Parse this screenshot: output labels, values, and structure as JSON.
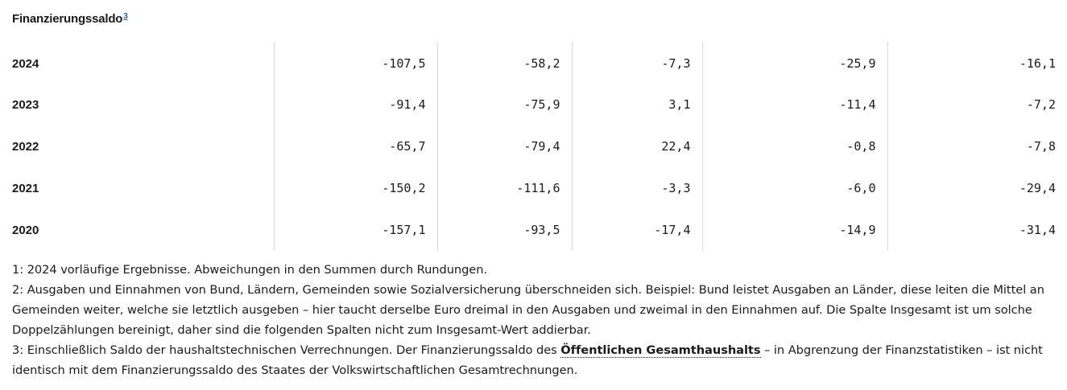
{
  "section": {
    "title": "Finanzierungssaldo",
    "footnote_ref": "3"
  },
  "rows": [
    {
      "year": "2024",
      "values": [
        "-107,5",
        "-58,2",
        "-7,3",
        "-25,9",
        "-16,1"
      ]
    },
    {
      "year": "2023",
      "values": [
        "-91,4",
        "-75,9",
        "3,1",
        "-11,4",
        "-7,2"
      ]
    },
    {
      "year": "2022",
      "values": [
        "-65,7",
        "-79,4",
        "22,4",
        "-0,8",
        "-7,8"
      ]
    },
    {
      "year": "2021",
      "values": [
        "-150,2",
        "-111,6",
        "-3,3",
        "-6,0",
        "-29,4"
      ]
    },
    {
      "year": "2020",
      "values": [
        "-157,1",
        "-93,5",
        "-17,4",
        "-14,9",
        "-31,4"
      ]
    }
  ],
  "footnotes": {
    "note1": "1: 2024 vorläufige Ergebnisse. Abweichungen in den Summen durch Rundungen.",
    "note2": "2: Ausgaben und Einnahmen von Bund, Ländern, Gemeinden sowie Sozialversicherung überschneiden sich. Beispiel: Bund leistet Ausgaben an Länder, diese leiten die Mittel an Gemeinden weiter, welche sie letztlich ausgeben – hier taucht derselbe Euro dreimal in den Ausgaben und zweimal in den Einnahmen auf. Die Spalte Insgesamt ist um solche Doppelzählungen bereinigt, daher sind die folgenden Spalten nicht zum Insgesamt-Wert addierbar.",
    "note3_before": "3: Einschließlich Saldo der haushaltstechnischen Verrechnungen. Der Finanzierungssaldo des ",
    "note3_link": "Öffentlichen Gesamthaushalts",
    "note3_after": " – in Abgrenzung der Finanzstatistiken – ist nicht identisch mit dem Finanzierungssaldo des Staates der Volkswirtschaftlichen Gesamtrechnungen."
  }
}
